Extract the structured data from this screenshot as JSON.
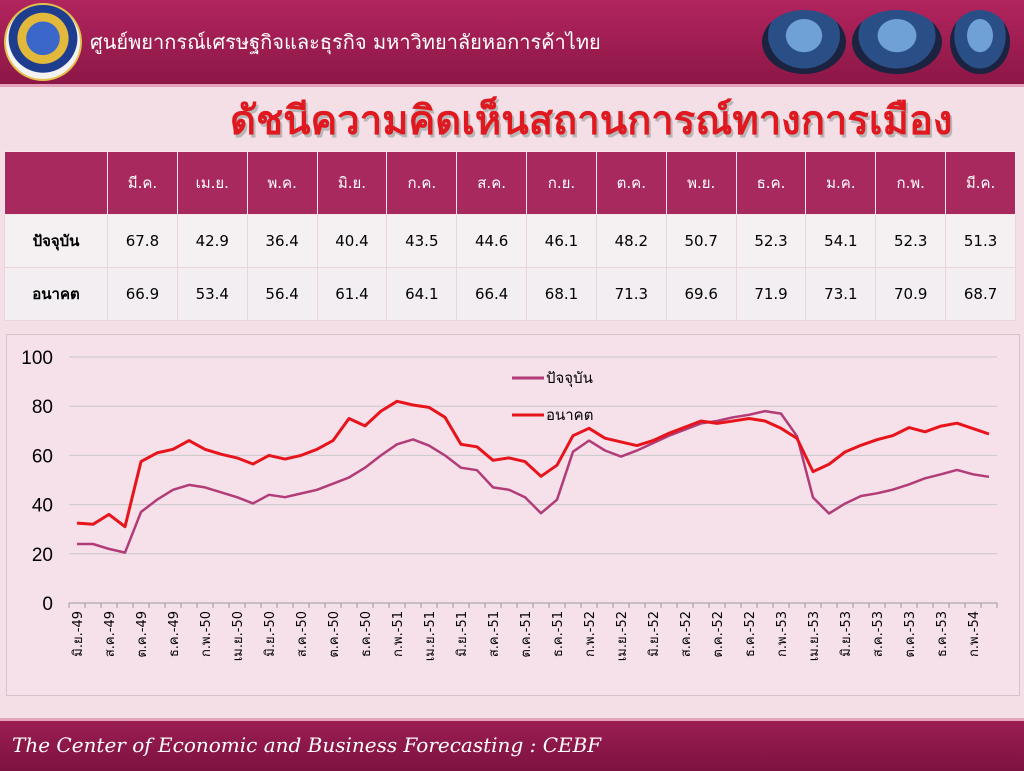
{
  "header": {
    "title": "ศูนย์พยากรณ์เศรษฐกิจและธุรกิจ มหาวิทยาลัยหอการค้าไทย"
  },
  "page_title": "ดัชนีความคิดเห็นสถานการณ์ทางการเมือง",
  "table": {
    "months": [
      "มี.ค.",
      "เม.ย.",
      "พ.ค.",
      "มิ.ย.",
      "ก.ค.",
      "ส.ค.",
      "ก.ย.",
      "ต.ค.",
      "พ.ย.",
      "ธ.ค.",
      "ม.ค.",
      "ก.พ.",
      "มี.ค."
    ],
    "rows": [
      {
        "label": "ปัจจุบัน",
        "values": [
          "67.8",
          "42.9",
          "36.4",
          "40.4",
          "43.5",
          "44.6",
          "46.1",
          "48.2",
          "50.7",
          "52.3",
          "54.1",
          "52.3",
          "51.3"
        ]
      },
      {
        "label": "อนาคต",
        "values": [
          "66.9",
          "53.4",
          "56.4",
          "61.4",
          "64.1",
          "66.4",
          "68.1",
          "71.3",
          "69.6",
          "71.9",
          "73.1",
          "70.9",
          "68.7"
        ]
      }
    ]
  },
  "chart_data": {
    "type": "line",
    "ylim": [
      0,
      100
    ],
    "yticks": [
      "0",
      "20",
      "40",
      "60",
      "80",
      "100"
    ],
    "x_tick_labels": [
      "มิ.ย.-49",
      "ส.ค.-49",
      "ต.ค.-49",
      "ธ.ค.-49",
      "ก.พ.-50",
      "เม.ย.-50",
      "มิ.ย.-50",
      "ส.ค.-50",
      "ต.ค.-50",
      "ธ.ค.-50",
      "ก.พ.-51",
      "เม.ย.-51",
      "มิ.ย.-51",
      "ส.ค.-51",
      "ต.ค.-51",
      "ธ.ค.-51",
      "ก.พ.-52",
      "เม.ย.-52",
      "มิ.ย.-52",
      "ส.ค.-52",
      "ต.ค.-52",
      "ธ.ค.-52",
      "ก.พ.-53",
      "เม.ย.-53",
      "มิ.ย.-53",
      "ส.ค.-53",
      "ต.ค.-53",
      "ธ.ค.-53",
      "ก.พ.-54"
    ],
    "legend_position": "top-center",
    "grid": true,
    "series": [
      {
        "name": "ปัจจุบัน",
        "color": "#b23c78",
        "values": [
          24,
          24,
          22,
          20.5,
          37,
          42,
          46,
          48,
          47,
          45,
          43,
          40.5,
          44,
          43,
          44.5,
          46,
          48.5,
          51,
          55,
          60,
          64.5,
          66.5,
          64,
          60,
          55,
          54,
          47,
          46,
          43,
          36.5,
          42,
          61.5,
          66,
          62,
          59.5,
          62,
          65,
          68,
          70.5,
          73,
          74,
          75.5,
          76.5,
          78,
          77,
          67.8,
          42.9,
          36.4,
          40.4,
          43.5,
          44.6,
          46.1,
          48.2,
          50.7,
          52.3,
          54.1,
          52.3,
          51.3
        ]
      },
      {
        "name": "อนาคต",
        "color": "#e8141c",
        "values": [
          32.5,
          32,
          36,
          31,
          57.5,
          61,
          62.5,
          66,
          62.5,
          60.5,
          59,
          56.5,
          60,
          58.5,
          60,
          62.5,
          66,
          75,
          72,
          78,
          82,
          80.5,
          79.5,
          75.5,
          64.5,
          63.5,
          58,
          59,
          57.5,
          51.5,
          56,
          68,
          71,
          67,
          65.5,
          64,
          66,
          69,
          71.5,
          74,
          73,
          74,
          75,
          74,
          71,
          66.9,
          53.4,
          56.4,
          61.4,
          64.1,
          66.4,
          68.1,
          71.3,
          69.6,
          71.9,
          73.1,
          70.9,
          68.7
        ]
      }
    ]
  },
  "footer": {
    "text": "The Center of Economic and Business Forecasting : CEBF"
  }
}
